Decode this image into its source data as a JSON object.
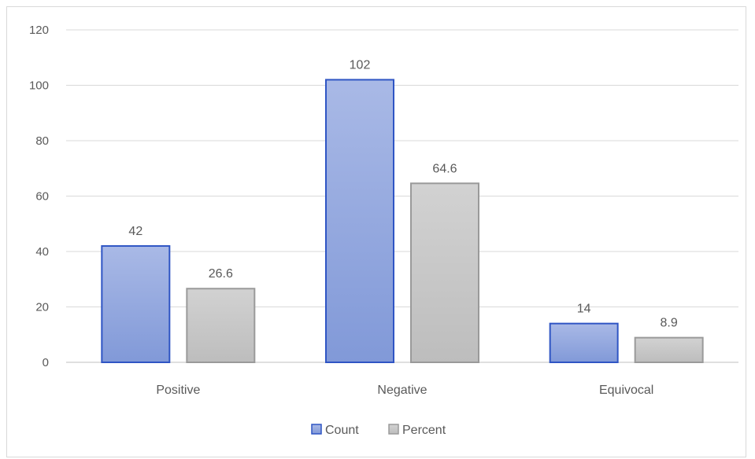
{
  "chart_data": {
    "type": "bar",
    "categories": [
      "Positive",
      "Negative",
      "Equivocal"
    ],
    "series": [
      {
        "name": "Count",
        "values": [
          42,
          102,
          14
        ],
        "color": "#8fa6dc",
        "stroke": "#2f55c4"
      },
      {
        "name": "Percent",
        "values": [
          26.6,
          64.6,
          8.9
        ],
        "color": "#c6c6c6",
        "stroke": "#9a9a9a"
      }
    ],
    "data_labels": [
      [
        "42",
        "102",
        "14"
      ],
      [
        "26.6",
        "64.6",
        "8.9"
      ]
    ],
    "yticks": [
      "0",
      "20",
      "40",
      "60",
      "80",
      "100",
      "120"
    ],
    "ylim": [
      0,
      120
    ],
    "grid": true,
    "legend": "bottom"
  }
}
